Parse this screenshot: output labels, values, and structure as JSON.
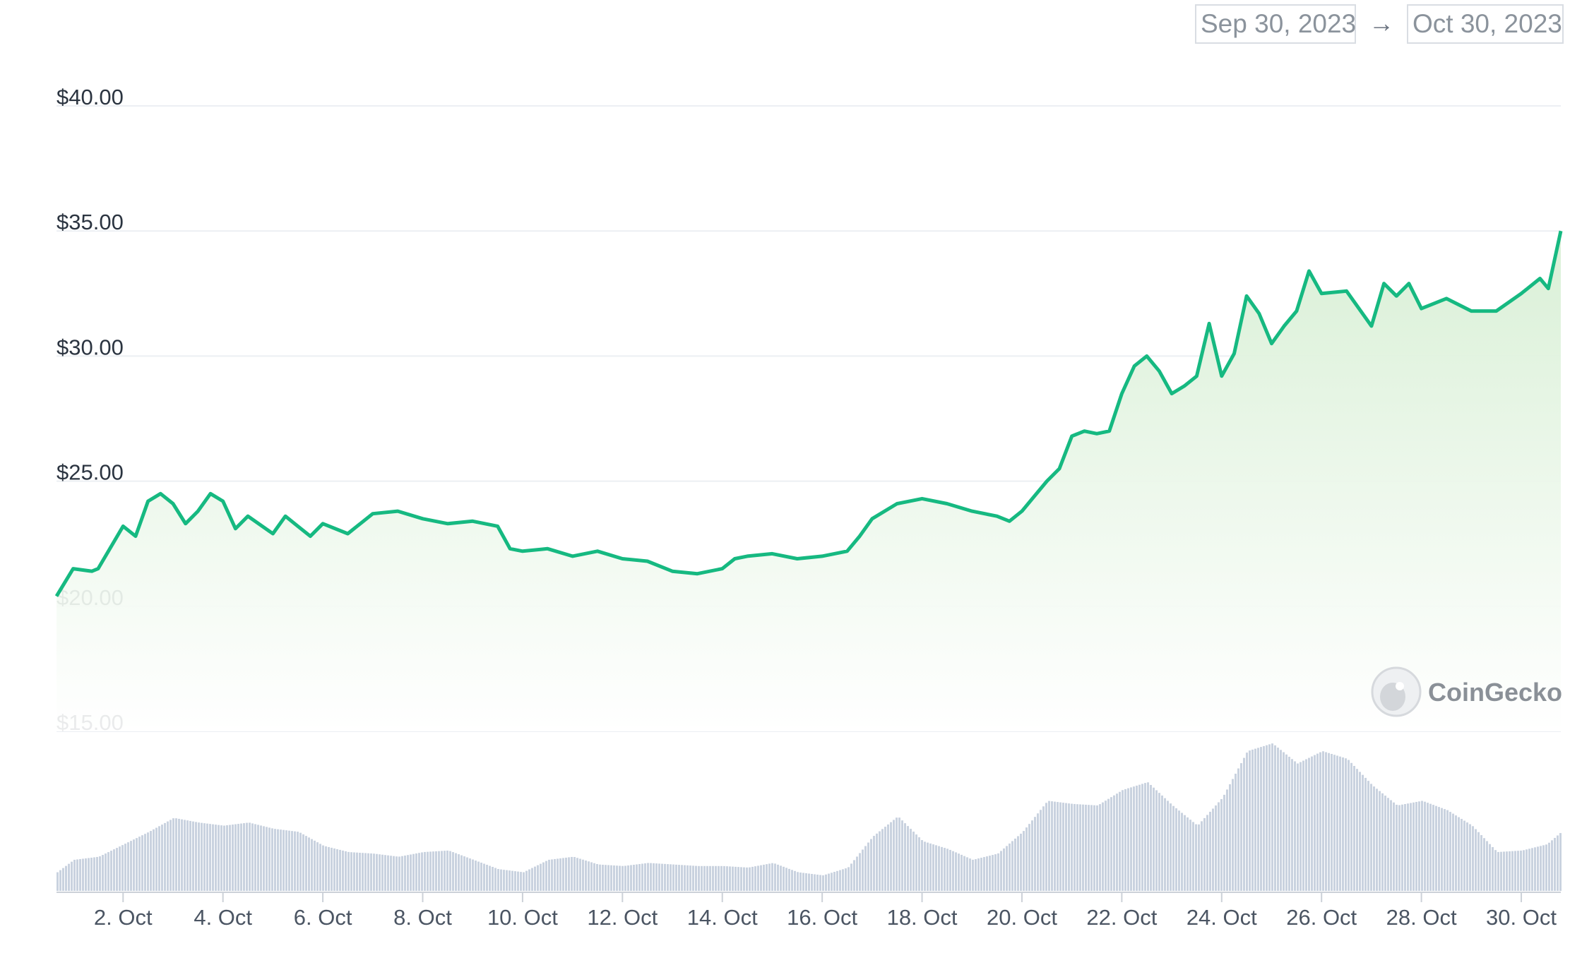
{
  "date_range": {
    "start": "Sep 30, 2023",
    "arrow": "→",
    "end": "Oct 30, 2023"
  },
  "watermark": "CoinGecko",
  "colors": {
    "price_line": "#16b981",
    "price_fill_top": "#d7efd4",
    "volume_bars": "#c9d2df",
    "grid": "#eceff3"
  },
  "chart_data": {
    "type": "area",
    "title": "",
    "xlabel": "",
    "ylabel": "",
    "x_ticks": [
      "2. Oct",
      "4. Oct",
      "6. Oct",
      "8. Oct",
      "10. Oct",
      "12. Oct",
      "14. Oct",
      "16. Oct",
      "18. Oct",
      "20. Oct",
      "22. Oct",
      "24. Oct",
      "26. Oct",
      "28. Oct",
      "30. Oct"
    ],
    "x_range": [
      "2023-09-30T16:00",
      "2023-10-30T19:00"
    ],
    "y_ticks": [
      "$15.00",
      "$20.00",
      "$25.00",
      "$30.00",
      "$35.00",
      "$40.00"
    ],
    "ylim": [
      15,
      40
    ],
    "grid": true,
    "series": [
      {
        "kind": "price",
        "x": [
          "2023-09-30T16:00",
          "2023-10-01T00:00",
          "2023-10-01T09:00",
          "2023-10-01T12:00",
          "2023-10-02T00:00",
          "2023-10-02T06:00",
          "2023-10-02T12:00",
          "2023-10-02T18:00",
          "2023-10-03T00:00",
          "2023-10-03T06:00",
          "2023-10-03T12:00",
          "2023-10-03T18:00",
          "2023-10-04T00:00",
          "2023-10-04T06:00",
          "2023-10-04T12:00",
          "2023-10-05T00:00",
          "2023-10-05T06:00",
          "2023-10-05T12:00",
          "2023-10-05T18:00",
          "2023-10-06T00:00",
          "2023-10-06T12:00",
          "2023-10-07T00:00",
          "2023-10-07T12:00",
          "2023-10-08T00:00",
          "2023-10-08T12:00",
          "2023-10-09T00:00",
          "2023-10-09T12:00",
          "2023-10-09T18:00",
          "2023-10-10T00:00",
          "2023-10-10T12:00",
          "2023-10-11T00:00",
          "2023-10-11T12:00",
          "2023-10-12T00:00",
          "2023-10-12T12:00",
          "2023-10-13T00:00",
          "2023-10-13T12:00",
          "2023-10-14T00:00",
          "2023-10-14T06:00",
          "2023-10-14T12:00",
          "2023-10-15T00:00",
          "2023-10-15T12:00",
          "2023-10-16T00:00",
          "2023-10-16T12:00",
          "2023-10-16T18:00",
          "2023-10-17T00:00",
          "2023-10-17T12:00",
          "2023-10-18T00:00",
          "2023-10-18T12:00",
          "2023-10-19T00:00",
          "2023-10-19T12:00",
          "2023-10-19T18:00",
          "2023-10-20T00:00",
          "2023-10-20T06:00",
          "2023-10-20T12:00",
          "2023-10-20T18:00",
          "2023-10-21T00:00",
          "2023-10-21T06:00",
          "2023-10-21T12:00",
          "2023-10-21T18:00",
          "2023-10-22T00:00",
          "2023-10-22T06:00",
          "2023-10-22T12:00",
          "2023-10-22T18:00",
          "2023-10-23T00:00",
          "2023-10-23T06:00",
          "2023-10-23T12:00",
          "2023-10-23T18:00",
          "2023-10-24T00:00",
          "2023-10-24T06:00",
          "2023-10-24T12:00",
          "2023-10-24T18:00",
          "2023-10-25T00:00",
          "2023-10-25T06:00",
          "2023-10-25T12:00",
          "2023-10-25T18:00",
          "2023-10-26T00:00",
          "2023-10-26T12:00",
          "2023-10-27T00:00",
          "2023-10-27T06:00",
          "2023-10-27T12:00",
          "2023-10-27T18:00",
          "2023-10-28T00:00",
          "2023-10-28T12:00",
          "2023-10-29T00:00",
          "2023-10-29T12:00",
          "2023-10-30T00:00",
          "2023-10-30T09:00",
          "2023-10-30T13:00",
          "2023-10-30T19:00"
        ],
        "y": [
          20.4,
          21.5,
          21.4,
          21.5,
          23.2,
          22.8,
          24.2,
          24.5,
          24.1,
          23.3,
          23.8,
          24.5,
          24.2,
          23.1,
          23.6,
          22.9,
          23.6,
          23.2,
          22.8,
          23.3,
          22.9,
          23.7,
          23.8,
          23.5,
          23.3,
          23.4,
          23.2,
          22.3,
          22.2,
          22.3,
          22.0,
          22.2,
          21.9,
          21.8,
          21.4,
          21.3,
          21.5,
          21.9,
          22.0,
          22.1,
          21.9,
          22.0,
          22.2,
          22.8,
          23.5,
          24.1,
          24.3,
          24.1,
          23.8,
          23.6,
          23.4,
          23.8,
          24.4,
          25.0,
          25.5,
          26.8,
          27.0,
          26.9,
          27.0,
          28.5,
          29.6,
          30.0,
          29.4,
          28.5,
          28.8,
          29.2,
          31.3,
          29.2,
          30.1,
          32.4,
          31.7,
          30.5,
          31.2,
          31.8,
          33.4,
          32.5,
          32.6,
          31.2,
          32.9,
          32.4,
          32.9,
          31.9,
          32.3,
          31.8,
          31.8,
          32.5,
          33.1,
          32.7,
          35.0
        ]
      },
      {
        "kind": "volume",
        "x": [
          "2023-09-30T16:00",
          "2023-10-01T00:00",
          "2023-10-01T12:00",
          "2023-10-02T00:00",
          "2023-10-02T12:00",
          "2023-10-03T00:00",
          "2023-10-03T12:00",
          "2023-10-04T00:00",
          "2023-10-04T12:00",
          "2023-10-05T00:00",
          "2023-10-05T12:00",
          "2023-10-06T00:00",
          "2023-10-06T12:00",
          "2023-10-07T00:00",
          "2023-10-07T12:00",
          "2023-10-08T00:00",
          "2023-10-08T12:00",
          "2023-10-09T00:00",
          "2023-10-09T12:00",
          "2023-10-10T00:00",
          "2023-10-10T12:00",
          "2023-10-11T00:00",
          "2023-10-11T12:00",
          "2023-10-12T00:00",
          "2023-10-12T12:00",
          "2023-10-13T00:00",
          "2023-10-13T12:00",
          "2023-10-14T00:00",
          "2023-10-14T12:00",
          "2023-10-15T00:00",
          "2023-10-15T12:00",
          "2023-10-16T00:00",
          "2023-10-16T12:00",
          "2023-10-17T00:00",
          "2023-10-17T12:00",
          "2023-10-18T00:00",
          "2023-10-18T12:00",
          "2023-10-19T00:00",
          "2023-10-19T12:00",
          "2023-10-20T00:00",
          "2023-10-20T12:00",
          "2023-10-21T00:00",
          "2023-10-21T12:00",
          "2023-10-22T00:00",
          "2023-10-22T12:00",
          "2023-10-23T00:00",
          "2023-10-23T12:00",
          "2023-10-24T00:00",
          "2023-10-24T12:00",
          "2023-10-25T00:00",
          "2023-10-25T12:00",
          "2023-10-26T00:00",
          "2023-10-26T12:00",
          "2023-10-27T00:00",
          "2023-10-27T12:00",
          "2023-10-28T00:00",
          "2023-10-28T12:00",
          "2023-10-29T00:00",
          "2023-10-29T12:00",
          "2023-10-30T00:00",
          "2023-10-30T12:00",
          "2023-10-30T19:00"
        ],
        "y": [
          0.12,
          0.2,
          0.22,
          0.3,
          0.38,
          0.47,
          0.44,
          0.42,
          0.44,
          0.4,
          0.38,
          0.29,
          0.25,
          0.24,
          0.22,
          0.25,
          0.26,
          0.2,
          0.14,
          0.12,
          0.2,
          0.22,
          0.17,
          0.16,
          0.18,
          0.17,
          0.16,
          0.16,
          0.15,
          0.18,
          0.12,
          0.1,
          0.15,
          0.35,
          0.48,
          0.32,
          0.27,
          0.2,
          0.24,
          0.38,
          0.58,
          0.56,
          0.55,
          0.65,
          0.7,
          0.55,
          0.42,
          0.6,
          0.9,
          0.95,
          0.82,
          0.9,
          0.85,
          0.68,
          0.55,
          0.58,
          0.52,
          0.42,
          0.25,
          0.26,
          0.3,
          0.38
        ]
      }
    ]
  }
}
